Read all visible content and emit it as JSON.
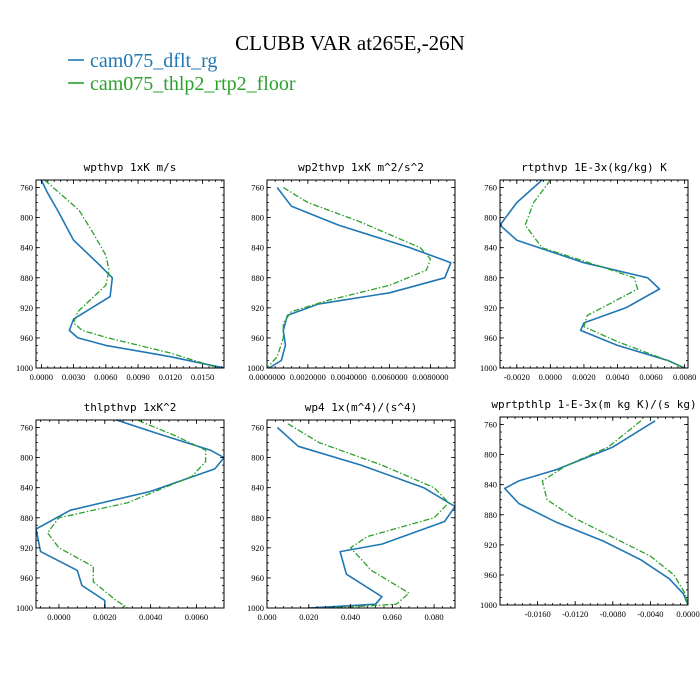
{
  "figure_title": "CLUBB VAR at265E,-26N",
  "legend": [
    {
      "label": "cam075_dflt_rg",
      "color": "#1f77b4",
      "dash": "solid"
    },
    {
      "label": "cam075_thlp2_rtp2_floor",
      "color": "#2ca02c",
      "dash": "dashdot"
    }
  ],
  "chart_data": [
    {
      "type": "line",
      "title": "wpthvp  1xK m/s",
      "xlim": [
        -0.0005,
        0.017
      ],
      "ylim": [
        1000,
        750
      ],
      "xticks": [
        0.0,
        0.003,
        0.006,
        0.009,
        0.012,
        0.015
      ],
      "xtick_labels": [
        "0.0000",
        "0.0030",
        "0.0060",
        "0.0090",
        "0.0120",
        "0.0150"
      ],
      "yticks": [
        760,
        800,
        840,
        880,
        920,
        960,
        1000
      ],
      "series": [
        {
          "name": "cam075_dflt_rg",
          "x": [
            0.0,
            0.0005,
            0.0015,
            0.003,
            0.0052,
            0.0066,
            0.0064,
            0.003,
            0.0026,
            0.0034,
            0.006,
            0.012,
            0.017
          ],
          "y": [
            750,
            765,
            790,
            830,
            860,
            880,
            905,
            935,
            950,
            960,
            970,
            985,
            1000
          ]
        },
        {
          "name": "cam075_thlp2_rtp2_floor",
          "x": [
            0.0003,
            0.0015,
            0.0035,
            0.0048,
            0.006,
            0.0063,
            0.006,
            0.0034,
            0.003,
            0.0038,
            0.0062,
            0.012,
            0.0165
          ],
          "y": [
            750,
            765,
            790,
            820,
            850,
            870,
            890,
            925,
            940,
            950,
            960,
            980,
            1000
          ]
        }
      ]
    },
    {
      "type": "line",
      "title": "wp2thvp  1xK m^2/s^2",
      "xlim": [
        0.0,
        0.0092
      ],
      "ylim": [
        1000,
        750
      ],
      "xticks": [
        0.0,
        0.002,
        0.004,
        0.006,
        0.008
      ],
      "xtick_labels": [
        "0.0000000",
        "0.0020000",
        "0.0040000",
        "0.0060000",
        "0.0080000"
      ],
      "yticks": [
        760,
        800,
        840,
        880,
        920,
        960,
        1000
      ],
      "series": [
        {
          "name": "cam075_dflt_rg",
          "x": [
            0.0005,
            0.0012,
            0.0035,
            0.007,
            0.009,
            0.0087,
            0.006,
            0.0025,
            0.001,
            0.0008,
            0.0009,
            0.0007,
            0.0001
          ],
          "y": [
            760,
            785,
            810,
            840,
            860,
            880,
            900,
            915,
            930,
            950,
            970,
            990,
            1000
          ]
        },
        {
          "name": "cam075_thlp2_rtp2_floor",
          "x": [
            0.0008,
            0.002,
            0.0045,
            0.0075,
            0.008,
            0.0078,
            0.006,
            0.003,
            0.0012,
            0.0008,
            0.0008,
            0.0005,
            0.0
          ],
          "y": [
            760,
            780,
            805,
            840,
            855,
            870,
            890,
            910,
            925,
            940,
            960,
            985,
            1000
          ]
        }
      ]
    },
    {
      "type": "line",
      "title": "rtpthvp  1E-3x(kg/kg) K",
      "xlim": [
        -0.003,
        0.0082
      ],
      "ylim": [
        1000,
        750
      ],
      "xticks": [
        -0.002,
        0.0,
        0.002,
        0.004,
        0.006,
        0.008
      ],
      "xtick_labels": [
        "-0.0020",
        "0.0000",
        "0.0020",
        "0.0040",
        "0.0060",
        "0.0080"
      ],
      "yticks": [
        760,
        800,
        840,
        880,
        920,
        960,
        1000
      ],
      "series": [
        {
          "name": "cam075_dflt_rg",
          "x": [
            -0.0005,
            -0.002,
            -0.003,
            -0.002,
            0.002,
            0.0058,
            0.0065,
            0.0045,
            0.002,
            0.0018,
            0.004,
            0.007,
            0.008
          ],
          "y": [
            750,
            780,
            810,
            830,
            860,
            880,
            895,
            920,
            940,
            950,
            970,
            990,
            1000
          ]
        },
        {
          "name": "cam075_thlp2_rtp2_floor",
          "x": [
            0.0,
            -0.001,
            -0.0015,
            -0.0005,
            0.003,
            0.005,
            0.0052,
            0.0035,
            0.0022,
            0.002,
            0.004,
            0.007,
            0.008
          ],
          "y": [
            750,
            780,
            810,
            840,
            865,
            880,
            895,
            915,
            930,
            945,
            965,
            990,
            1000
          ]
        }
      ]
    },
    {
      "type": "line",
      "title": "thlpthvp  1xK^2",
      "xlim": [
        -0.001,
        0.0072
      ],
      "ylim": [
        1000,
        750
      ],
      "xticks": [
        0.0,
        0.002,
        0.004,
        0.006
      ],
      "xtick_labels": [
        "0.0000",
        "0.0020",
        "0.0040",
        "0.0060"
      ],
      "yticks": [
        760,
        800,
        840,
        880,
        920,
        960,
        1000
      ],
      "series": [
        {
          "name": "cam075_dflt_rg",
          "x": [
            0.002,
            0.0045,
            0.0066,
            0.0072,
            0.0068,
            0.004,
            0.0005,
            -0.001,
            -0.0008,
            0.0008,
            0.001,
            0.002,
            0.002
          ],
          "y": [
            745,
            770,
            790,
            800,
            815,
            845,
            870,
            895,
            925,
            950,
            970,
            990,
            1000
          ]
        },
        {
          "name": "cam075_thlp2_rtp2_floor",
          "x": [
            0.003,
            0.005,
            0.0064,
            0.0064,
            0.0058,
            0.003,
            0.0,
            -0.0005,
            0.0,
            0.0015,
            0.0015,
            0.0025,
            0.003
          ],
          "y": [
            745,
            770,
            790,
            805,
            825,
            860,
            880,
            900,
            920,
            945,
            965,
            990,
            1000
          ]
        }
      ]
    },
    {
      "type": "line",
      "title": "wp4  1x(m^4)/(s^4)",
      "xlim": [
        0.0,
        0.09
      ],
      "ylim": [
        1000,
        750
      ],
      "xticks": [
        0.0,
        0.02,
        0.04,
        0.06,
        0.08
      ],
      "xtick_labels": [
        "0.000",
        "0.020",
        "0.040",
        "0.060",
        "0.080"
      ],
      "yticks": [
        760,
        800,
        840,
        880,
        920,
        960,
        1000
      ],
      "series": [
        {
          "name": "cam075_dflt_rg",
          "x": [
            0.005,
            0.015,
            0.045,
            0.075,
            0.09,
            0.085,
            0.055,
            0.035,
            0.038,
            0.055,
            0.052,
            0.02
          ],
          "y": [
            760,
            785,
            810,
            840,
            865,
            885,
            915,
            925,
            955,
            985,
            995,
            1000
          ]
        },
        {
          "name": "cam075_thlp2_rtp2_floor",
          "x": [
            0.01,
            0.025,
            0.055,
            0.08,
            0.087,
            0.08,
            0.048,
            0.04,
            0.05,
            0.068,
            0.062,
            0.03
          ],
          "y": [
            755,
            780,
            810,
            840,
            860,
            880,
            905,
            920,
            950,
            980,
            995,
            1000
          ]
        }
      ]
    },
    {
      "type": "line",
      "title": "wprtpthlp  1-E-3x(m kg K)/(s kg)",
      "xlim": [
        -0.02,
        0.0
      ],
      "ylim": [
        1000,
        750
      ],
      "xticks": [
        -0.016,
        -0.012,
        -0.008,
        -0.004,
        0.0
      ],
      "xtick_labels": [
        "-0.0160",
        "-0.0120",
        "-0.0080",
        "-0.0040",
        "0.0000"
      ],
      "yticks": [
        760,
        800,
        840,
        880,
        920,
        960,
        1000
      ],
      "series": [
        {
          "name": "cam075_dflt_rg",
          "x": [
            -0.0035,
            -0.008,
            -0.014,
            -0.018,
            -0.0195,
            -0.018,
            -0.014,
            -0.009,
            -0.005,
            -0.002,
            -0.0005,
            0.0
          ],
          "y": [
            755,
            790,
            820,
            835,
            845,
            865,
            890,
            915,
            940,
            965,
            985,
            1000
          ]
        },
        {
          "name": "cam075_thlp2_rtp2_floor",
          "x": [
            -0.005,
            -0.0085,
            -0.013,
            -0.0155,
            -0.015,
            -0.012,
            -0.008,
            -0.004,
            -0.0015,
            -0.0003,
            0.0
          ],
          "y": [
            755,
            790,
            815,
            835,
            860,
            885,
            910,
            935,
            960,
            985,
            1000
          ]
        }
      ]
    }
  ]
}
